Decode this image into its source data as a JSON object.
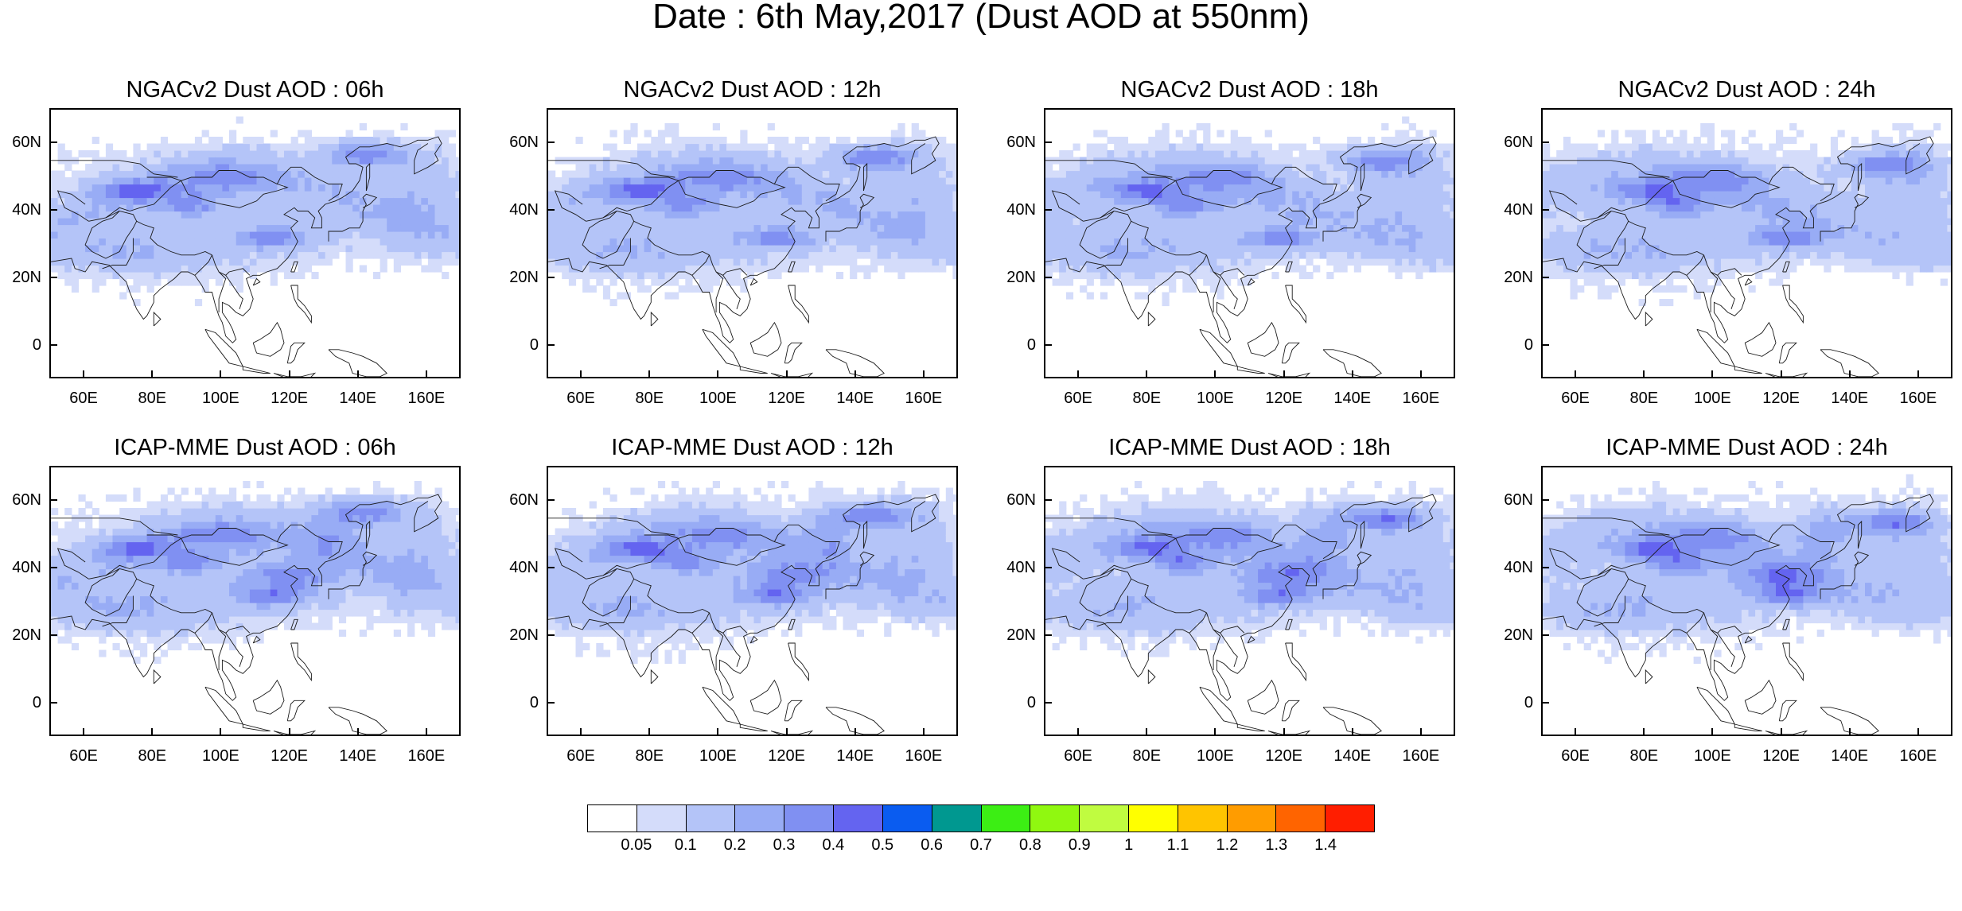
{
  "title": "Date : 6th May,2017 (Dust AOD at 550nm)",
  "panels": [
    {
      "title": "NGACv2 Dust AOD : 06h"
    },
    {
      "title": "NGACv2 Dust AOD : 12h"
    },
    {
      "title": "NGACv2 Dust AOD : 18h"
    },
    {
      "title": "NGACv2 Dust AOD : 24h"
    },
    {
      "title": "ICAP-MME Dust AOD : 06h"
    },
    {
      "title": "ICAP-MME Dust AOD : 12h"
    },
    {
      "title": "ICAP-MME Dust AOD : 18h"
    },
    {
      "title": "ICAP-MME Dust AOD : 24h"
    }
  ],
  "axes": {
    "y_ticks": [
      "60N",
      "40N",
      "20N",
      "0"
    ],
    "x_ticks": [
      "60E",
      "80E",
      "100E",
      "120E",
      "140E",
      "160E"
    ]
  },
  "colorbar": {
    "labels": [
      "0.05",
      "0.1",
      "0.2",
      "0.3",
      "0.4",
      "0.5",
      "0.6",
      "0.7",
      "0.8",
      "0.9",
      "1",
      "1.1",
      "1.2",
      "1.3",
      "1.4"
    ],
    "colors": [
      "#ffffff",
      "#d4dcfa",
      "#b4c4f8",
      "#98acf5",
      "#8090f2",
      "#6464f0",
      "#0a5cf0",
      "#009890",
      "#3cee14",
      "#90f810",
      "#c0fc40",
      "#ffff00",
      "#ffc400",
      "#ff9c00",
      "#ff6400",
      "#ff1e00"
    ]
  }
}
